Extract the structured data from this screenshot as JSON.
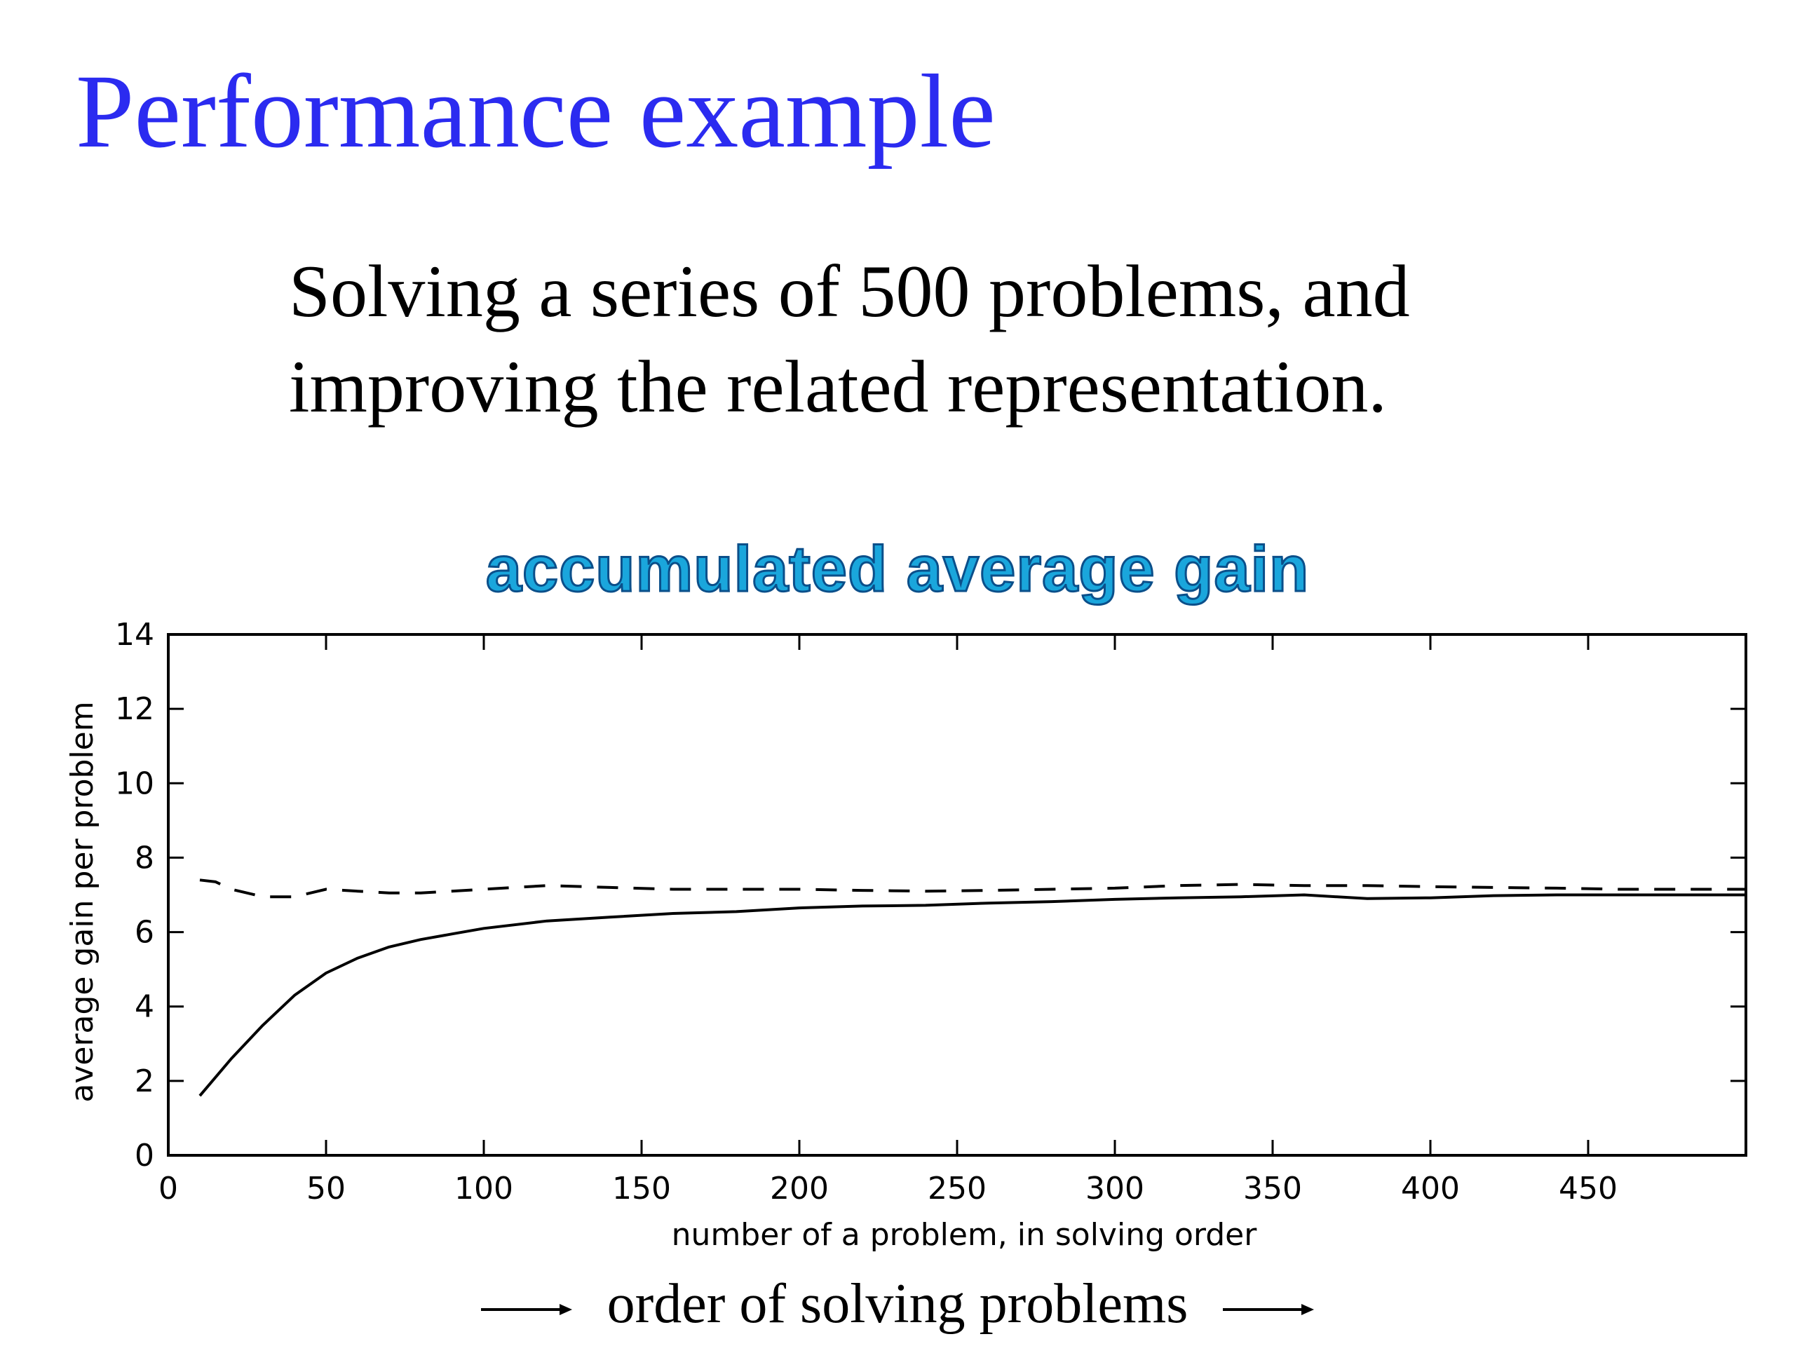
{
  "slide": {
    "title": "Performance example",
    "subtitle_lines": [
      "Solving a series of 500 problems, and",
      "improving the related representation."
    ],
    "caption": "order of solving problems",
    "colors": {
      "title": "#2b2bf0",
      "chart_title": "#1aa6dc",
      "chart_title_outline": "#0b4f8a"
    }
  },
  "chart_data": {
    "type": "line",
    "title": "accumulated average gain",
    "xlabel": "number of a problem, in solving order",
    "ylabel": "average gain per problem",
    "xlim": [
      0,
      500
    ],
    "ylim": [
      0,
      14
    ],
    "xticks": [
      0,
      50,
      100,
      150,
      200,
      250,
      300,
      350,
      400,
      450
    ],
    "yticks": [
      0,
      2,
      4,
      6,
      8,
      10,
      12,
      14
    ],
    "grid": false,
    "series": [
      {
        "style": "solid",
        "color": "#000000",
        "x": [
          10,
          20,
          30,
          40,
          50,
          60,
          70,
          80,
          90,
          100,
          120,
          140,
          160,
          180,
          200,
          220,
          240,
          260,
          280,
          300,
          320,
          340,
          360,
          380,
          400,
          420,
          440,
          460,
          480,
          500
        ],
        "y": [
          1.6,
          2.6,
          3.5,
          4.3,
          4.9,
          5.3,
          5.6,
          5.8,
          5.95,
          6.1,
          6.3,
          6.4,
          6.5,
          6.55,
          6.65,
          6.7,
          6.72,
          6.78,
          6.82,
          6.88,
          6.92,
          6.95,
          7.0,
          6.9,
          6.92,
          6.98,
          7.0,
          7.0,
          7.0,
          7.0
        ]
      },
      {
        "style": "dashed",
        "color": "#000000",
        "x": [
          10,
          15,
          20,
          25,
          30,
          40,
          50,
          60,
          70,
          80,
          100,
          120,
          140,
          160,
          180,
          200,
          220,
          240,
          260,
          280,
          300,
          320,
          340,
          360,
          380,
          400,
          420,
          440,
          460,
          480,
          500
        ],
        "y": [
          7.4,
          7.35,
          7.15,
          7.05,
          6.95,
          6.95,
          7.15,
          7.1,
          7.05,
          7.05,
          7.15,
          7.25,
          7.2,
          7.15,
          7.15,
          7.15,
          7.12,
          7.1,
          7.12,
          7.15,
          7.18,
          7.25,
          7.28,
          7.25,
          7.25,
          7.22,
          7.2,
          7.18,
          7.15,
          7.15,
          7.15
        ]
      }
    ]
  }
}
